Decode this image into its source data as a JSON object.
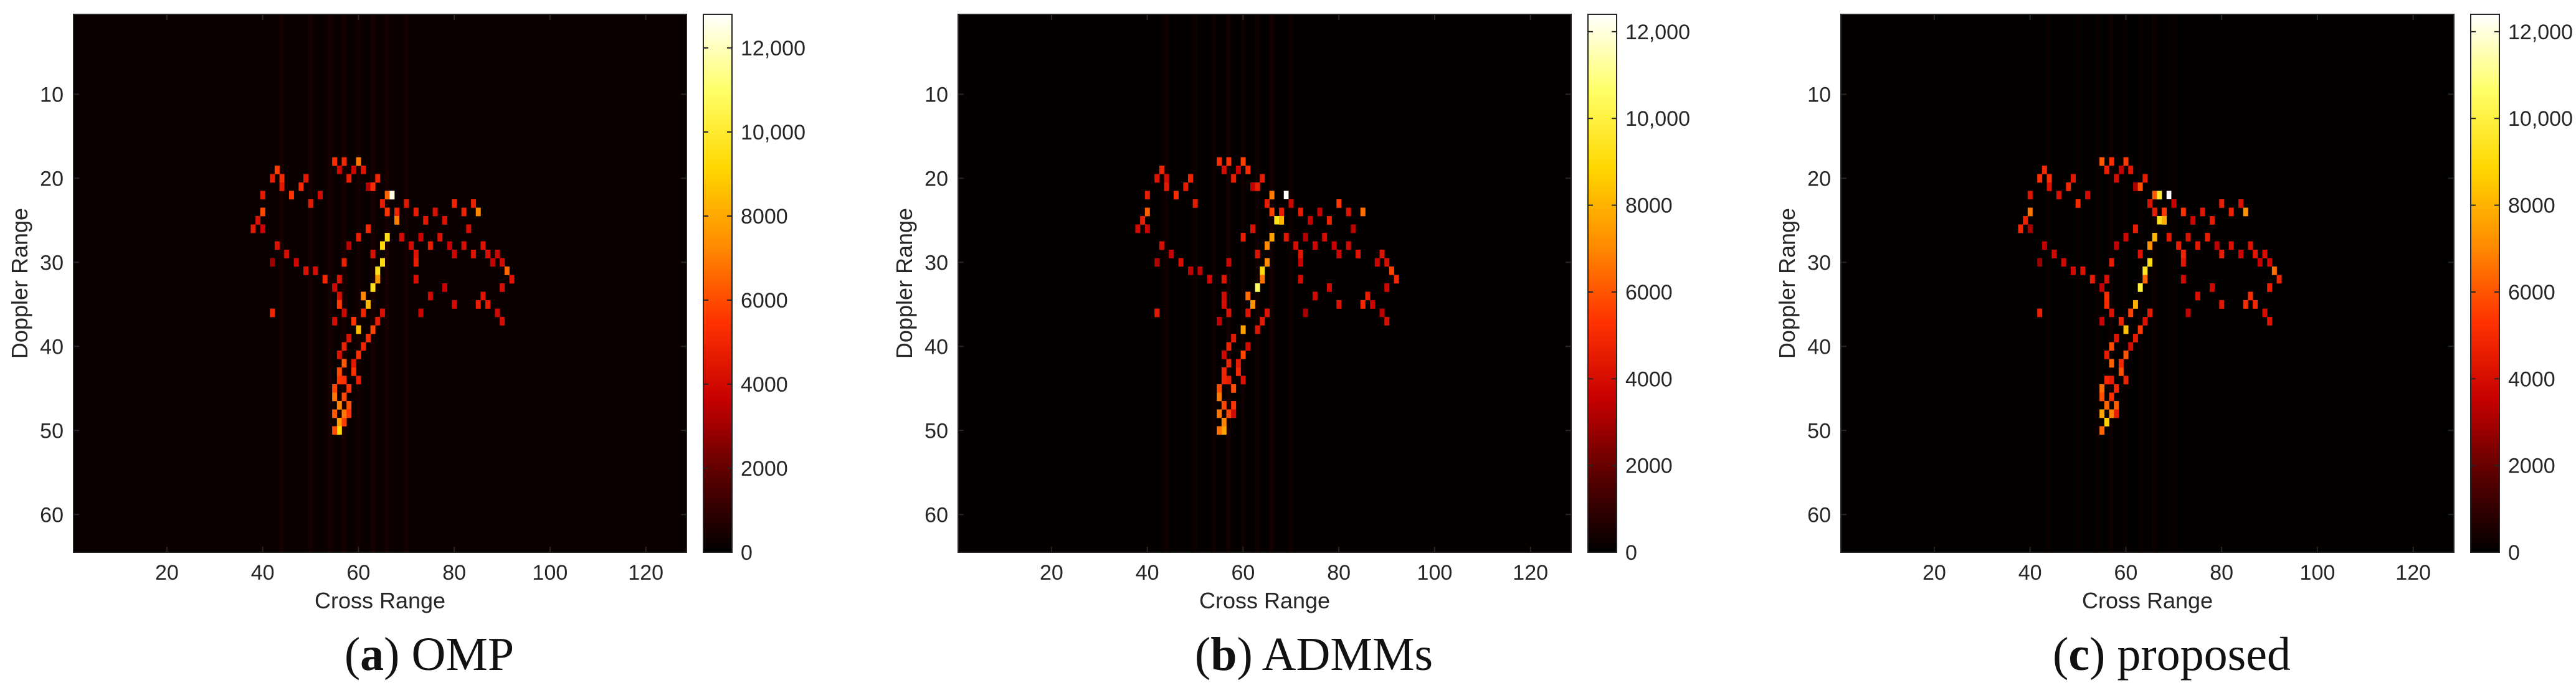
{
  "chart_data": [
    {
      "type": "heatmap",
      "panel_letter": "a",
      "panel_name": "OMP",
      "xlabel": "Cross Range",
      "ylabel": "Doppler Range",
      "xlim": [
        0.5,
        128.5
      ],
      "ylim": [
        0.5,
        64.5
      ],
      "y_reversed": true,
      "xticks": [
        20,
        40,
        60,
        80,
        100,
        120
      ],
      "yticks": [
        10,
        20,
        30,
        40,
        50,
        60
      ],
      "colorbar": {
        "min": 0,
        "max": 12800,
        "ticks": [
          0,
          2000,
          4000,
          6000,
          8000,
          10000,
          12000
        ],
        "tick_labels": [
          "0",
          "2000",
          "4000",
          "6000",
          "8000",
          "10,000",
          "12,000"
        ]
      },
      "colormap": [
        "#000000",
        "#5a0000",
        "#c80000",
        "#ff3200",
        "#ff8c00",
        "#ffd700",
        "#ffff66",
        "#ffffff"
      ],
      "background_color": "#0a0000"
    },
    {
      "type": "heatmap",
      "panel_letter": "b",
      "panel_name": "ADMMs",
      "xlabel": "Cross Range",
      "ylabel": "Doppler Range",
      "xlim": [
        0.5,
        128.5
      ],
      "ylim": [
        0.5,
        64.5
      ],
      "y_reversed": true,
      "xticks": [
        20,
        40,
        60,
        80,
        100,
        120
      ],
      "yticks": [
        10,
        20,
        30,
        40,
        50,
        60
      ],
      "colorbar": {
        "min": 0,
        "max": 12400,
        "ticks": [
          0,
          2000,
          4000,
          6000,
          8000,
          10000,
          12000
        ],
        "tick_labels": [
          "0",
          "2000",
          "4000",
          "6000",
          "8000",
          "10,000",
          "12,000"
        ]
      },
      "colormap": [
        "#000000",
        "#5a0000",
        "#c80000",
        "#ff3200",
        "#ff8c00",
        "#ffd700",
        "#ffff66",
        "#ffffff"
      ],
      "background_color": "#050000"
    },
    {
      "type": "heatmap",
      "panel_letter": "c",
      "panel_name": "proposed",
      "xlabel": "Cross Range",
      "ylabel": "Doppler Range",
      "xlim": [
        0.5,
        128.5
      ],
      "ylim": [
        0.5,
        64.5
      ],
      "y_reversed": true,
      "xticks": [
        20,
        40,
        60,
        80,
        100,
        120
      ],
      "yticks": [
        10,
        20,
        30,
        40,
        50,
        60
      ],
      "colorbar": {
        "min": 0,
        "max": 12400,
        "ticks": [
          0,
          2000,
          4000,
          6000,
          8000,
          10000,
          12000
        ],
        "tick_labels": [
          "0",
          "2000",
          "4000",
          "6000",
          "8000",
          "10,000",
          "12,000"
        ]
      },
      "colormap": [
        "#000000",
        "#5a0000",
        "#c80000",
        "#ff3200",
        "#ff8c00",
        "#ffd700",
        "#ffff66",
        "#ffffff"
      ],
      "background_color": "#030000"
    }
  ],
  "target_pixels": [
    [
      20,
      42,
      5000
    ],
    [
      19,
      43,
      5200
    ],
    [
      20,
      44,
      4600
    ],
    [
      21,
      44,
      4200
    ],
    [
      22,
      46,
      4800
    ],
    [
      21,
      48,
      5000
    ],
    [
      20,
      49,
      4400
    ],
    [
      23,
      50,
      4600
    ],
    [
      22,
      52,
      3800
    ],
    [
      18,
      55,
      5600
    ],
    [
      19,
      56,
      4200
    ],
    [
      18,
      57,
      5000
    ],
    [
      20,
      58,
      4400
    ],
    [
      19,
      59,
      4000
    ],
    [
      18,
      60,
      6200
    ],
    [
      19,
      61,
      4800
    ],
    [
      21,
      62,
      3600
    ],
    [
      21,
      63,
      5400
    ],
    [
      20,
      64,
      4600
    ],
    [
      22,
      66,
      6800
    ],
    [
      22,
      67,
      11000
    ],
    [
      23,
      65,
      4200
    ],
    [
      24,
      68,
      5000
    ],
    [
      23,
      70,
      4000
    ],
    [
      24,
      72,
      4600
    ],
    [
      25,
      74,
      4200
    ],
    [
      24,
      76,
      3800
    ],
    [
      25,
      78,
      4600
    ],
    [
      23,
      80,
      5200
    ],
    [
      24,
      82,
      4800
    ],
    [
      23,
      84,
      4400
    ],
    [
      24,
      85,
      6400
    ],
    [
      26,
      83,
      4000
    ],
    [
      22,
      40,
      4200
    ],
    [
      24,
      40,
      6000
    ],
    [
      25,
      39,
      4400
    ],
    [
      26,
      38,
      4800
    ],
    [
      26,
      40,
      3600
    ],
    [
      28,
      43,
      4000
    ],
    [
      29,
      45,
      3800
    ],
    [
      30,
      47,
      4200
    ],
    [
      31,
      49,
      4000
    ],
    [
      31,
      51,
      3800
    ],
    [
      32,
      53,
      4400
    ],
    [
      33,
      55,
      4000
    ],
    [
      25,
      68,
      7800
    ],
    [
      24,
      66,
      5400
    ],
    [
      27,
      66,
      9000
    ],
    [
      28,
      65,
      8200
    ],
    [
      30,
      65,
      8800
    ],
    [
      31,
      64,
      9600
    ],
    [
      32,
      64,
      7200
    ],
    [
      33,
      63,
      10400
    ],
    [
      35,
      62,
      8600
    ],
    [
      34,
      61,
      6400
    ],
    [
      36,
      61,
      5200
    ],
    [
      38,
      60,
      7400
    ],
    [
      37,
      59,
      5600
    ],
    [
      39,
      58,
      4800
    ],
    [
      40,
      57,
      5200
    ],
    [
      41,
      56,
      4600
    ],
    [
      29,
      63,
      4200
    ],
    [
      26,
      62,
      4600
    ],
    [
      27,
      60,
      4200
    ],
    [
      28,
      58,
      3800
    ],
    [
      30,
      57,
      4400
    ],
    [
      32,
      56,
      4000
    ],
    [
      34,
      56,
      4600
    ],
    [
      35,
      56,
      5000
    ],
    [
      36,
      57,
      4200
    ],
    [
      37,
      55,
      3800
    ],
    [
      42,
      57,
      5600
    ],
    [
      43,
      56,
      6000
    ],
    [
      44,
      56,
      5400
    ],
    [
      45,
      55,
      5800
    ],
    [
      46,
      55,
      6600
    ],
    [
      47,
      56,
      7000
    ],
    [
      48,
      55,
      6800
    ],
    [
      49,
      56,
      7600
    ],
    [
      50,
      56,
      9400
    ],
    [
      49,
      57,
      5400
    ],
    [
      47,
      58,
      6200
    ],
    [
      45,
      58,
      5600
    ],
    [
      43,
      59,
      5200
    ],
    [
      44,
      60,
      4600
    ],
    [
      42,
      59,
      4800
    ],
    [
      41,
      60,
      5600
    ],
    [
      40,
      61,
      4400
    ],
    [
      39,
      62,
      4800
    ],
    [
      38,
      63,
      5200
    ],
    [
      37,
      64,
      4600
    ],
    [
      36,
      65,
      4200
    ],
    [
      46,
      57,
      5800
    ],
    [
      48,
      57,
      6600
    ],
    [
      44,
      57,
      5000
    ],
    [
      50,
      55,
      6200
    ],
    [
      48,
      58,
      4800
    ],
    [
      27,
      69,
      4400
    ],
    [
      28,
      71,
      4000
    ],
    [
      27,
      73,
      3800
    ],
    [
      29,
      72,
      4200
    ],
    [
      28,
      75,
      4400
    ],
    [
      27,
      77,
      4200
    ],
    [
      28,
      79,
      4000
    ],
    [
      29,
      80,
      4200
    ],
    [
      28,
      82,
      3800
    ],
    [
      29,
      84,
      4400
    ],
    [
      28,
      86,
      4000
    ],
    [
      29,
      87,
      4600
    ],
    [
      29,
      89,
      4200
    ],
    [
      30,
      90,
      4000
    ],
    [
      31,
      91,
      6400
    ],
    [
      32,
      92,
      4600
    ],
    [
      30,
      88,
      3800
    ],
    [
      33,
      90,
      4200
    ],
    [
      34,
      86,
      4800
    ],
    [
      35,
      85,
      5200
    ],
    [
      35,
      87,
      4400
    ],
    [
      36,
      89,
      4200
    ],
    [
      37,
      90,
      3800
    ],
    [
      30,
      72,
      4400
    ],
    [
      32,
      72,
      3800
    ],
    [
      34,
      75,
      4000
    ],
    [
      36,
      73,
      3600
    ],
    [
      33,
      78,
      3800
    ],
    [
      35,
      80,
      4000
    ],
    [
      36,
      42,
      4400
    ],
    [
      30,
      42,
      3200
    ]
  ],
  "captions": [
    {
      "letter": "a",
      "text": "OMP"
    },
    {
      "letter": "b",
      "text": "ADMMs"
    },
    {
      "letter": "c",
      "text": "proposed"
    }
  ]
}
